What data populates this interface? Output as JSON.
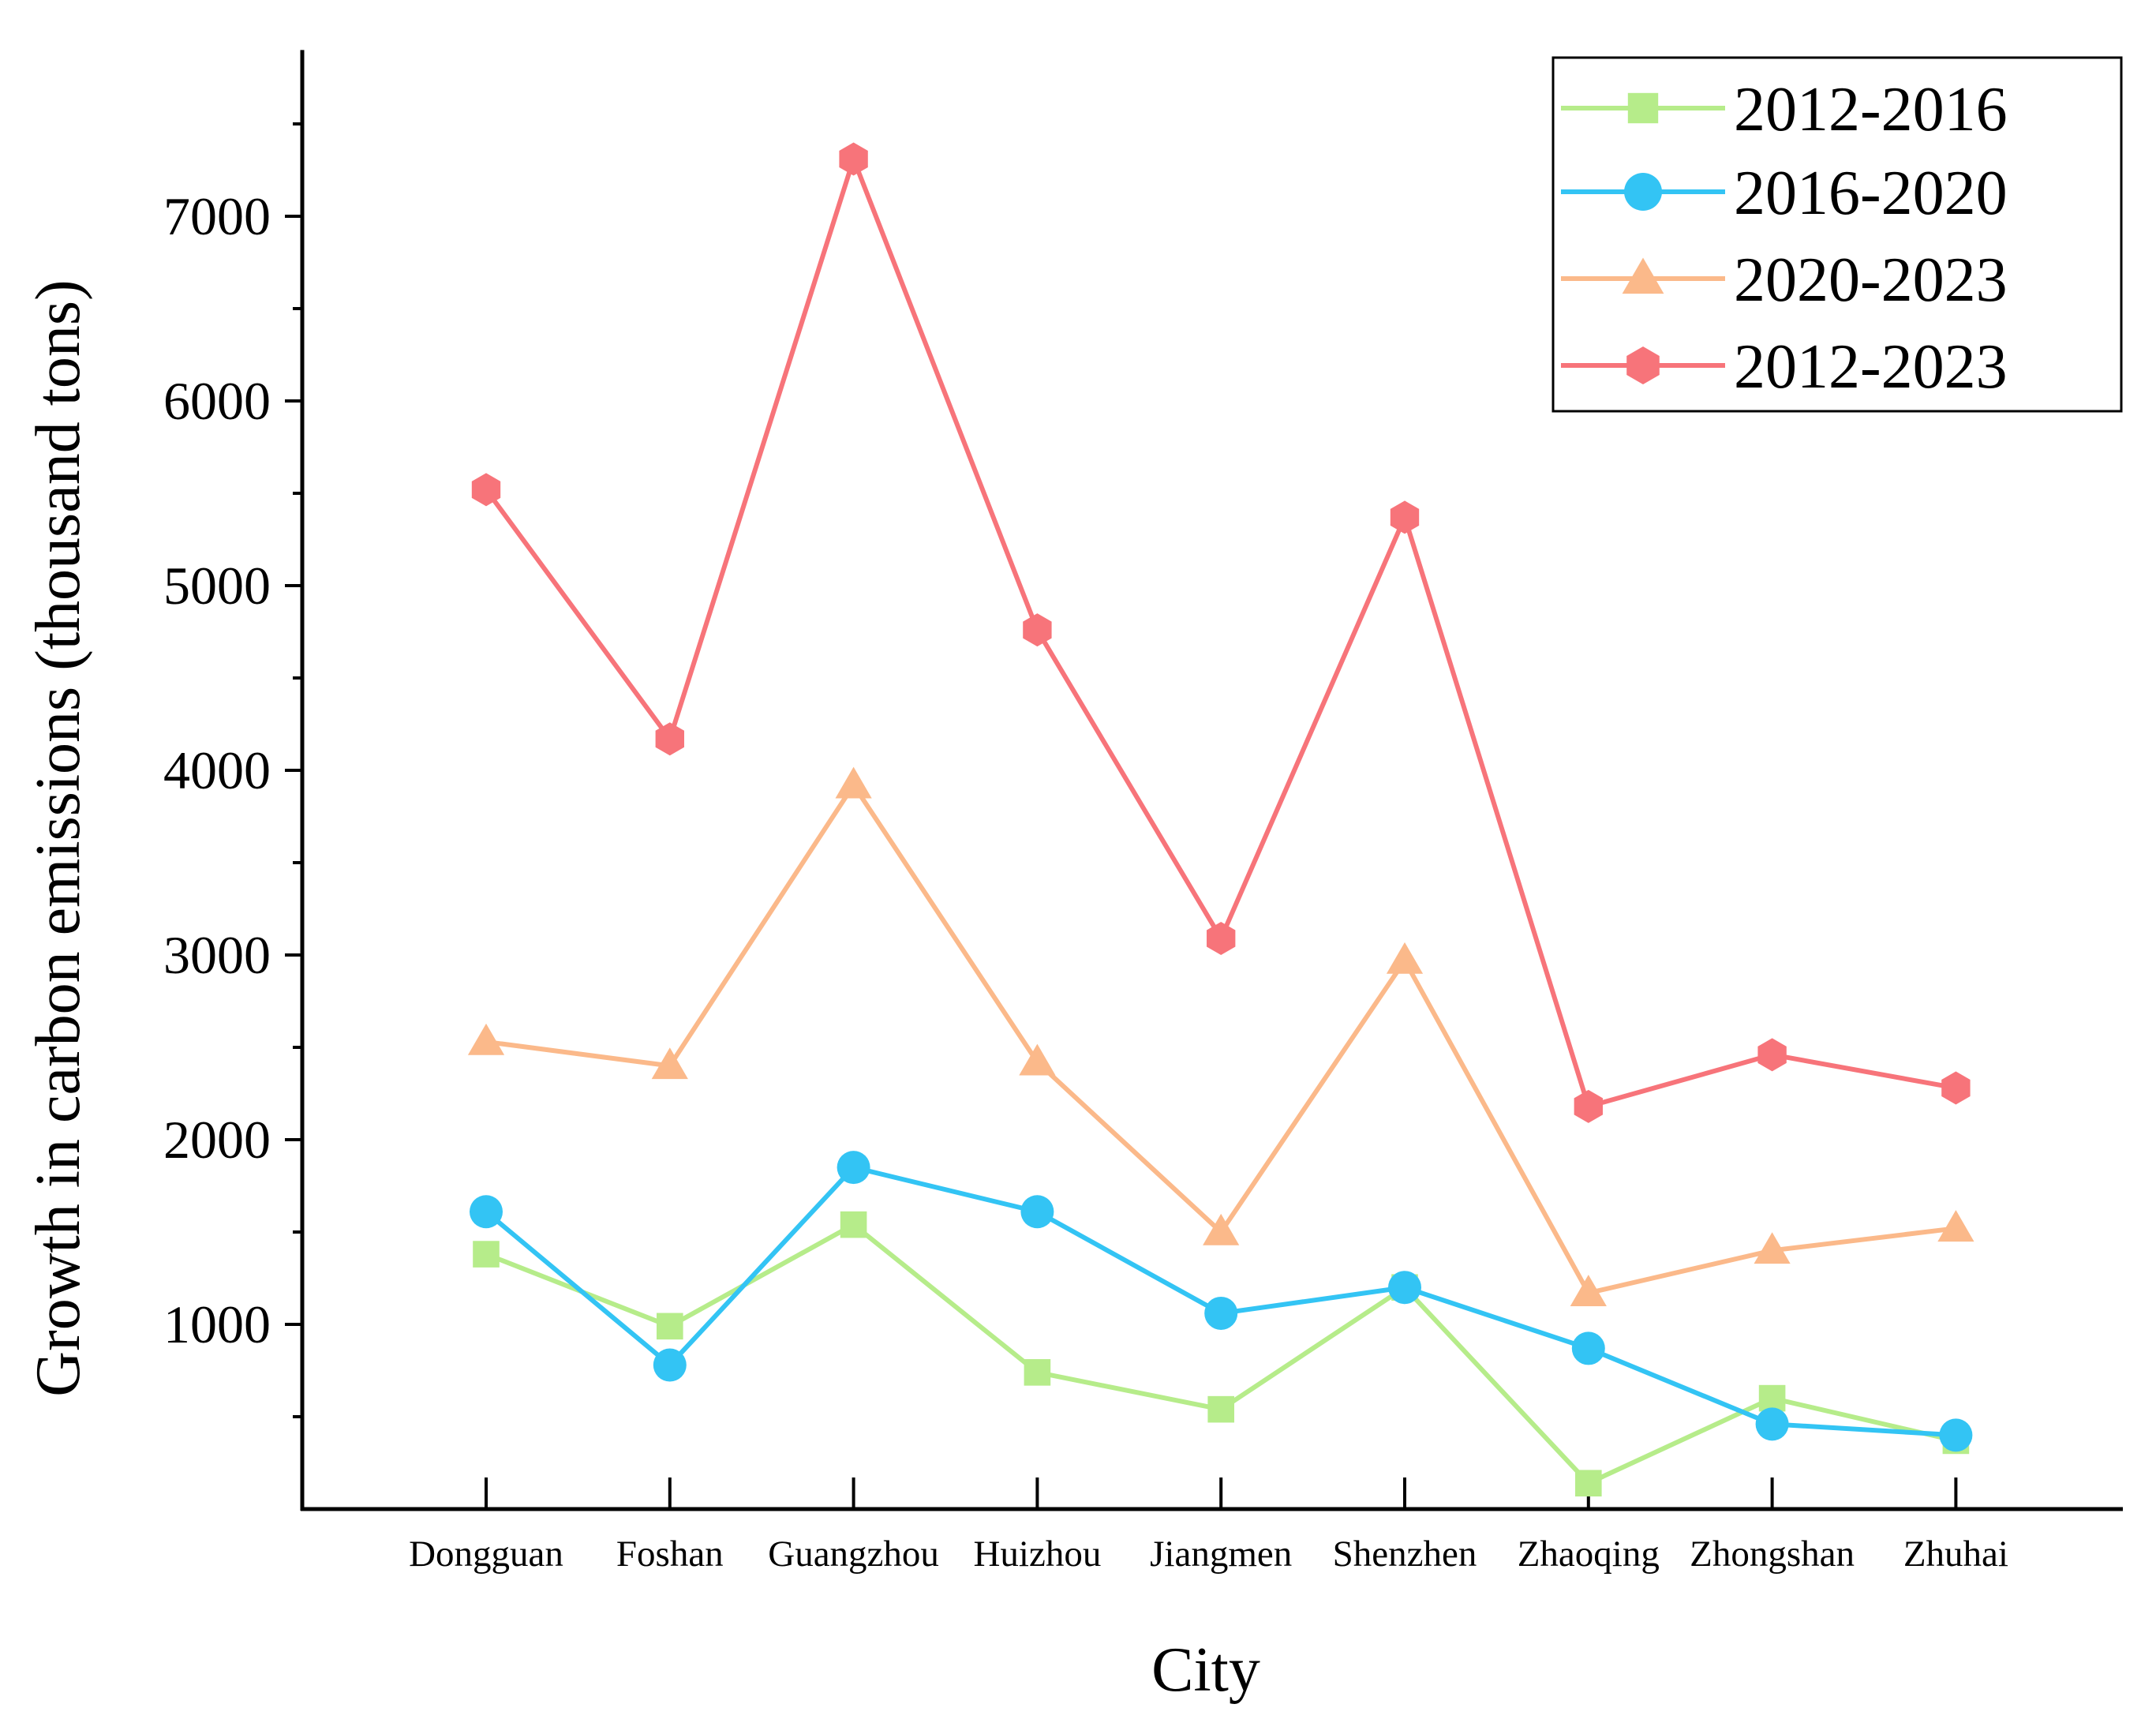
{
  "chart_data": {
    "type": "line",
    "title": "",
    "xlabel": "City",
    "ylabel": "Growth in carbon emissions (thousand tons)",
    "categories": [
      "Dongguan",
      "Foshan",
      "Guangzhou",
      "Huizhou",
      "Jiangmen",
      "Shenzhen",
      "Zhaoqing",
      "Zhongshan",
      "Zhuhai"
    ],
    "ylim": [
      0,
      7900
    ],
    "yticks": [
      1000,
      2000,
      3000,
      4000,
      5000,
      6000,
      7000
    ],
    "ytick_labels": [
      "1000",
      "2000",
      "3000",
      "4000",
      "5000",
      "6000",
      "7000"
    ],
    "grid": false,
    "legend_position": "top-right",
    "series": [
      {
        "name": "2012-2016",
        "color": "#b6ec8a",
        "marker": "square",
        "values": [
          1380,
          990,
          1540,
          740,
          540,
          1200,
          140,
          600,
          370
        ]
      },
      {
        "name": "2016-2020",
        "color": "#33c4f4",
        "marker": "circle",
        "values": [
          1610,
          780,
          1850,
          1610,
          1060,
          1200,
          870,
          460,
          400
        ]
      },
      {
        "name": "2020-2023",
        "color": "#fbb98a",
        "marker": "triangle",
        "values": [
          2530,
          2400,
          3920,
          2420,
          1500,
          2970,
          1170,
          1400,
          1520
        ]
      },
      {
        "name": "2012-2023",
        "color": "#f7747a",
        "marker": "hexagon",
        "values": [
          5520,
          4170,
          7310,
          4760,
          3090,
          5370,
          2180,
          2460,
          2280
        ]
      }
    ]
  }
}
